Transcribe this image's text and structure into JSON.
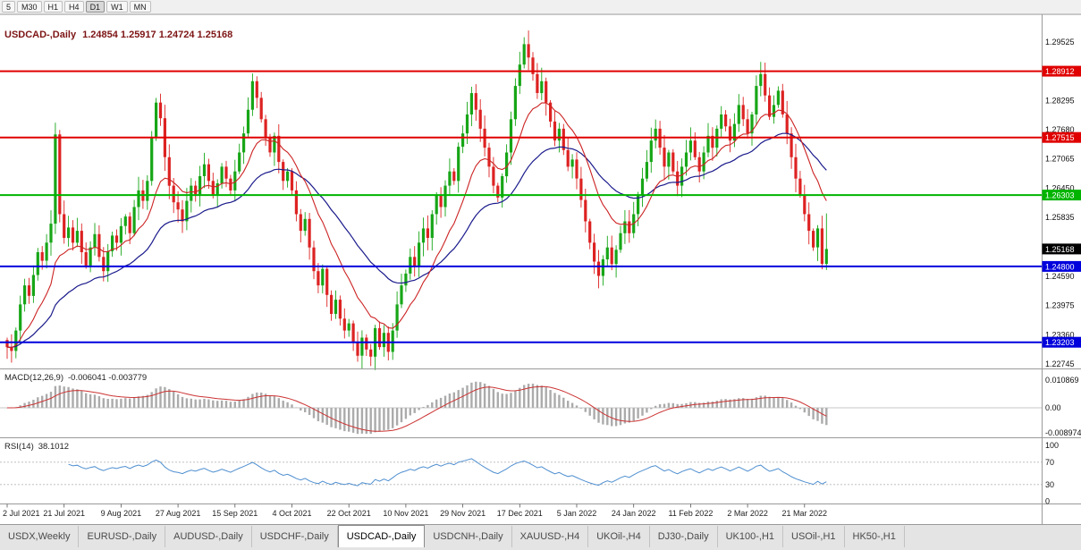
{
  "toolbar": {
    "buttons": [
      "5",
      "M30",
      "H1",
      "H4",
      "D1",
      "W1",
      "MN"
    ],
    "active": "D1"
  },
  "chart_data": {
    "type": "candlestick",
    "symbol": "USDCAD-,Daily",
    "timeframe": "Daily",
    "ohlc_text": "1.24854 1.25917 1.24724 1.25168",
    "last_candle": {
      "open": 1.24854,
      "high": 1.25917,
      "low": 1.24724,
      "close": 1.25168
    },
    "current_price": 1.25168,
    "x_labels": [
      "2 Jul 2021",
      "21 Jul 2021",
      "9 Aug 2021",
      "27 Aug 2021",
      "15 Sep 2021",
      "4 Oct 2021",
      "22 Oct 2021",
      "10 Nov 2021",
      "29 Nov 2021",
      "17 Dec 2021",
      "5 Jan 2022",
      "24 Jan 2022",
      "11 Feb 2022",
      "2 Mar 2022",
      "21 Mar 2022"
    ],
    "y_axis_prices": [
      1.29525,
      1.28295,
      1.2768,
      1.27065,
      1.2645,
      1.25835,
      1.2459,
      1.23975,
      1.2336,
      1.22745
    ],
    "hlines": [
      {
        "price": 1.28912,
        "color": "#e00000",
        "kind": "resistance"
      },
      {
        "price": 1.27515,
        "color": "#e00000",
        "kind": "resistance"
      },
      {
        "price": 1.26303,
        "color": "#00b400",
        "kind": "level"
      },
      {
        "price": 1.248,
        "color": "#0000dd",
        "kind": "support"
      },
      {
        "price": 1.23203,
        "color": "#0000dd",
        "kind": "support"
      }
    ],
    "closes": [
      1.231,
      1.2302,
      1.2345,
      1.24,
      1.244,
      1.2418,
      1.2462,
      1.251,
      1.2492,
      1.253,
      1.257,
      1.2758,
      1.259,
      1.254,
      1.2562,
      1.253,
      1.2555,
      1.251,
      1.2482,
      1.252,
      1.2548,
      1.25,
      1.247,
      1.2512,
      1.2545,
      1.253,
      1.2565,
      1.2585,
      1.255,
      1.2605,
      1.264,
      1.2618,
      1.266,
      1.275,
      1.2825,
      1.2792,
      1.271,
      1.265,
      1.2615,
      1.26,
      1.2575,
      1.2618,
      1.265,
      1.2632,
      1.267,
      1.2695,
      1.266,
      1.263,
      1.2655,
      1.269,
      1.2665,
      1.264,
      1.268,
      1.272,
      1.276,
      1.281,
      1.287,
      1.2835,
      1.279,
      1.275,
      1.272,
      1.2755,
      1.27,
      1.266,
      1.268,
      1.264,
      1.259,
      1.2555,
      1.258,
      1.252,
      1.247,
      1.244,
      1.2475,
      1.242,
      1.238,
      1.241,
      1.237,
      1.2345,
      1.236,
      1.232,
      1.2292,
      1.233,
      1.2305,
      1.229,
      1.235,
      1.231,
      1.234,
      1.23,
      1.2345,
      1.24,
      1.244,
      1.2465,
      1.25,
      1.248,
      1.253,
      1.256,
      1.254,
      1.259,
      1.263,
      1.2605,
      1.265,
      1.268,
      1.266,
      1.2732,
      1.276,
      1.28,
      1.2845,
      1.281,
      1.277,
      1.273,
      1.269,
      1.265,
      1.2625,
      1.267,
      1.272,
      1.279,
      1.286,
      1.2905,
      1.2948,
      1.292,
      1.2885,
      1.2845,
      1.287,
      1.2825,
      1.2785,
      1.2745,
      1.277,
      1.2725,
      1.269,
      1.2705,
      1.2665,
      1.262,
      1.2575,
      1.253,
      1.249,
      1.246,
      1.2495,
      1.252,
      1.2485,
      1.2515,
      1.255,
      1.2575,
      1.255,
      1.259,
      1.263,
      1.2665,
      1.27,
      1.2745,
      1.277,
      1.273,
      1.269,
      1.272,
      1.268,
      1.265,
      1.269,
      1.272,
      1.2745,
      1.271,
      1.268,
      1.272,
      1.2755,
      1.273,
      1.277,
      1.28,
      1.2775,
      1.2745,
      1.278,
      1.282,
      1.279,
      1.276,
      1.28,
      1.286,
      1.2885,
      1.284,
      1.2795,
      1.282,
      1.285,
      1.28,
      1.276,
      1.271,
      1.2665,
      1.263,
      1.259,
      1.2555,
      1.252,
      1.256,
      1.24854,
      1.25168
    ],
    "macd": {
      "name": "MACD(12,26,9)",
      "values": "-0.006041 -0.003779",
      "params": [
        12,
        26,
        9
      ],
      "axis_labels": [
        "0.010869",
        "0.00",
        "-0.008974"
      ]
    },
    "rsi": {
      "name": "RSI(14)",
      "value": "38.1012",
      "period": 14,
      "levels": [
        100,
        70,
        30,
        0
      ]
    },
    "colors": {
      "bull": "#17a617",
      "bear": "#dd2222",
      "ma_fast": "#cc2222",
      "ma_slow": "#1a1a8c",
      "macd_hist": "#ababab",
      "macd_signal": "#cc3333",
      "rsi": "#4f8fd0",
      "badge_current": "#000000"
    }
  },
  "tabs": {
    "items": [
      "USDX,Weekly",
      "EURUSD-,Daily",
      "AUDUSD-,Daily",
      "USDCHF-,Daily",
      "USDCAD-,Daily",
      "USDCNH-,Daily",
      "XAUUSD-,H4",
      "UKOil-,H4",
      "DJ30-,Daily",
      "UK100-,H1",
      "USOil-,H1",
      "HK50-,H1"
    ],
    "active": "USDCAD-,Daily"
  }
}
